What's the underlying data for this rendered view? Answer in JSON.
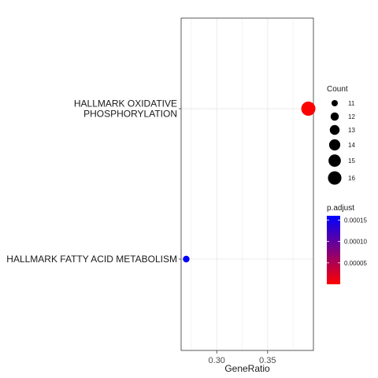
{
  "chart_data": {
    "type": "scatter",
    "xlabel": "GeneRatio",
    "ylabel": "",
    "xlim": [
      0.265,
      0.395
    ],
    "xticks": [
      0.3,
      0.35
    ],
    "xtick_labels": [
      "0.30",
      "0.35"
    ],
    "grid": true,
    "legend_placement": "right",
    "categories": [
      [
        "HALLMARK OXIDATIVE",
        "PHOSPHORYLATION"
      ],
      [
        "HALLMARK FATTY ACID METABOLISM"
      ]
    ],
    "points": [
      {
        "term": "HALLMARK OXIDATIVE PHOSPHORYLATION",
        "gene_ratio": 0.39,
        "count": 16,
        "p_adjust": 2e-06
      },
      {
        "term": "HALLMARK FATTY ACID METABOLISM",
        "gene_ratio": 0.27,
        "count": 11,
        "p_adjust": 0.00016
      }
    ],
    "size_legend": {
      "title": "Count",
      "values": [
        11,
        12,
        13,
        14,
        15,
        16
      ],
      "labels": [
        "11",
        "12",
        "13",
        "14",
        "15",
        "16"
      ]
    },
    "color_legend": {
      "title": "p.adjust",
      "low_color": "#ff0000",
      "high_color": "#0000ff",
      "range": [
        0.0,
        0.00016
      ],
      "tick_values": [
        5e-05,
        0.0001,
        0.00015
      ],
      "tick_labels": [
        "0.00005",
        "0.00010",
        "0.00015"
      ]
    }
  }
}
